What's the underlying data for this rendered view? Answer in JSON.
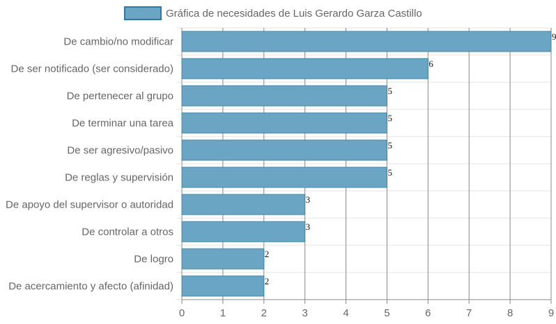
{
  "chart_data": {
    "type": "bar",
    "orientation": "horizontal",
    "categories": [
      "De cambio/no modificar",
      "De ser notificado (ser considerado)",
      "De pertenecer al grupo",
      "De terminar una tarea",
      "De ser agresivo/pasivo",
      "De reglas y supervisión",
      "De apoyo del supervisor o autoridad",
      "De controlar a otros",
      "De logro",
      "De acercamiento y afecto (afinidad)"
    ],
    "series": [
      {
        "name": "Gráfica de necesidades de Luis Gerardo Garza Castillo",
        "values": [
          9,
          6,
          5,
          5,
          5,
          5,
          3,
          3,
          2,
          2
        ]
      }
    ],
    "value_labels": [
      "9",
      "6",
      "5",
      "5",
      "5",
      "5",
      "3",
      "3",
      "2",
      "2"
    ],
    "x_ticks": [
      "0",
      "1",
      "2",
      "3",
      "4",
      "5",
      "6",
      "7",
      "8",
      "9"
    ],
    "xlim": [
      0,
      9
    ],
    "grid": true,
    "legend_position": "top",
    "colors": {
      "bar_fill": "#6aa5c4",
      "bar_stroke": "#3d86ad",
      "legend_fill": "#6aa5c4",
      "legend_stroke": "#2e7aa6",
      "vgrid": "#888888",
      "hgrid": "#e3e3e3"
    }
  }
}
